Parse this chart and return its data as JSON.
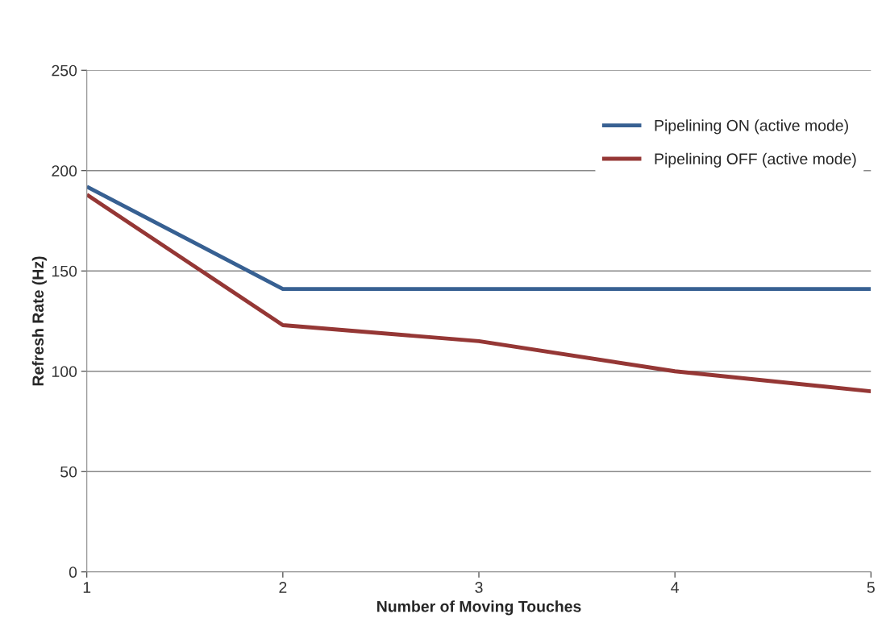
{
  "chart_data": {
    "type": "line",
    "xlabel": "Number of Moving Touches",
    "ylabel": "Refresh Rate (Hz)",
    "x": [
      1,
      2,
      3,
      4,
      5
    ],
    "series": [
      {
        "name": "Pipelining ON (active mode)",
        "color": "#376092",
        "values": [
          192,
          141,
          141,
          141,
          141
        ]
      },
      {
        "name": "Pipelining OFF (active mode)",
        "color": "#953735",
        "values": [
          188,
          123,
          115,
          100,
          90
        ]
      }
    ],
    "xlim": [
      1,
      5
    ],
    "xticks": [
      1,
      2,
      3,
      4,
      5
    ],
    "ylim": [
      0,
      250
    ],
    "yticks": [
      0,
      50,
      100,
      150,
      200,
      250
    ],
    "grid": "y",
    "legend": "top right",
    "marker": "none",
    "line_style": "solid"
  }
}
